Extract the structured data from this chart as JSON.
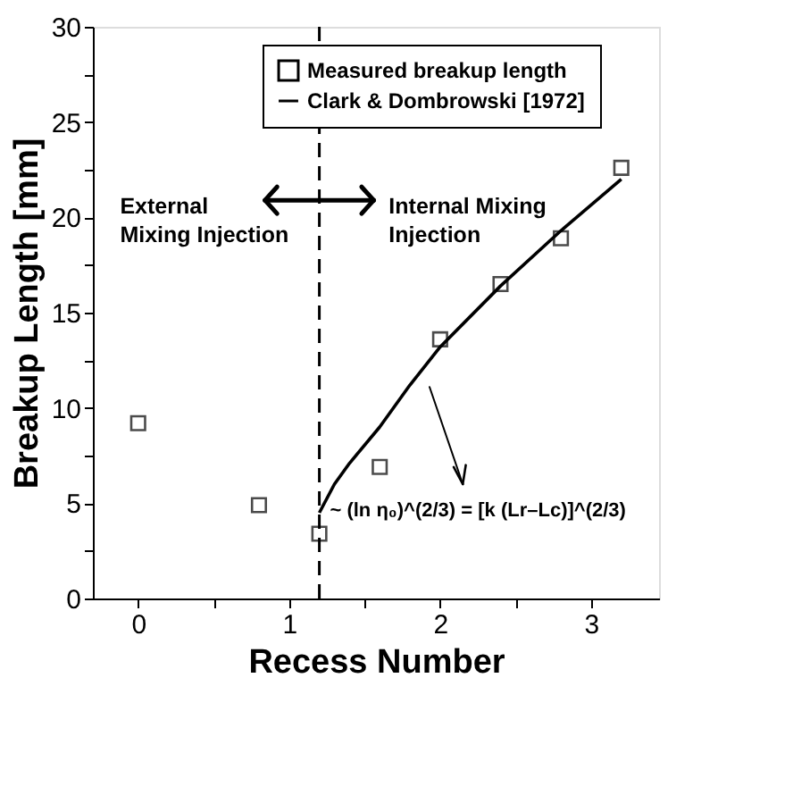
{
  "chart_data": {
    "type": "scatter",
    "xlabel": "Recess Number",
    "ylabel": "Breakup Length [mm]",
    "xlim": [
      -0.3,
      3.45
    ],
    "ylim": [
      0,
      30
    ],
    "xticks": [
      0,
      {
        "value": 0.5,
        "label": null
      },
      1,
      {
        "value": 1.5,
        "label": null
      },
      2,
      {
        "value": 2.5,
        "label": null
      },
      3
    ],
    "yticks": [
      0,
      {
        "value": 2.5,
        "label": null
      },
      5,
      {
        "value": 7.5,
        "label": null
      },
      10,
      {
        "value": 12.5,
        "label": null
      },
      15,
      {
        "value": 17.5,
        "label": null
      },
      20,
      {
        "value": 22.5,
        "label": null
      },
      25,
      {
        "value": 27.5,
        "label": null
      },
      30
    ],
    "series": [
      {
        "name": "Measured breakup length",
        "marker": "square",
        "color": "#000000",
        "x": [
          0,
          0.8,
          1.2,
          1.6,
          2.0,
          2.4,
          2.8,
          3.2
        ],
        "values": [
          9.2,
          4.9,
          3.4,
          6.9,
          13.6,
          16.5,
          18.9,
          22.6
        ]
      },
      {
        "name": "Clark & Dombrowski [1972]",
        "type": "line",
        "line_style": "solid",
        "color": "#000000",
        "x": [
          1.2,
          1.3,
          1.4,
          1.6,
          1.8,
          2.0,
          2.4,
          2.8,
          3.2
        ],
        "values": [
          4.5,
          6.0,
          7.1,
          9.0,
          11.2,
          13.2,
          16.4,
          19.3,
          22.0
        ]
      }
    ],
    "ref_lines": [
      {
        "axis": "x",
        "value": 1.2,
        "line_style": "dashed",
        "color": "#000000"
      }
    ],
    "annotations": [
      "External\nMixing Injection",
      "Internal Mixing\nInjection",
      "~ (ln η₀)^(2/3) = [k (Lr–Lc)]^(2/3)"
    ],
    "legend": "top",
    "grid": false
  }
}
